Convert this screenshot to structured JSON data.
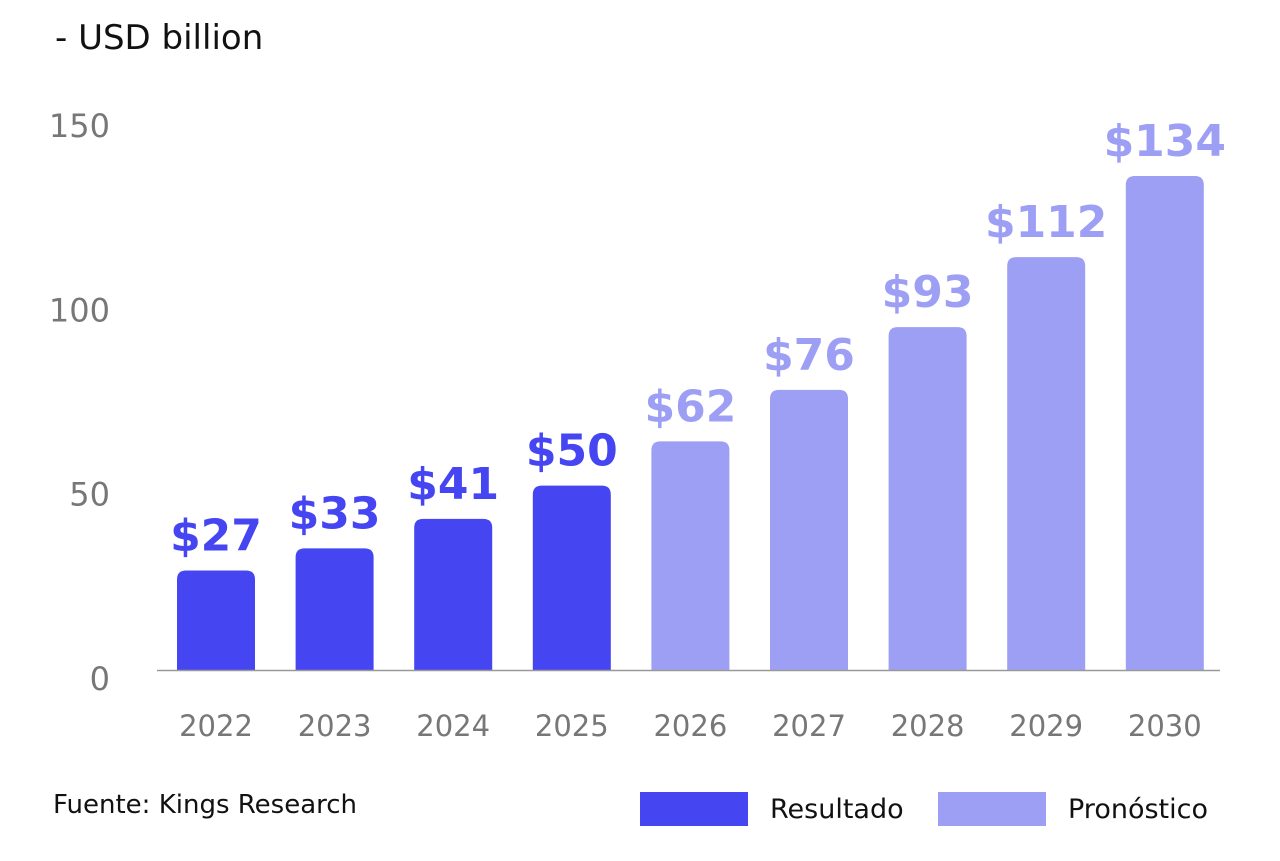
{
  "chart_data": {
    "type": "bar",
    "title": "",
    "unit_label": "-   USD billion",
    "xlabel": "",
    "ylabel": "USD billion",
    "ylim": [
      0,
      150
    ],
    "yticks": [
      0,
      50,
      100,
      150
    ],
    "categories": [
      "2022",
      "2023",
      "2024",
      "2025",
      "2026",
      "2027",
      "2028",
      "2029",
      "2030"
    ],
    "values": [
      27,
      33,
      41,
      50,
      62,
      76,
      93,
      112,
      134
    ],
    "data_labels": [
      "$27",
      "$33",
      "$41",
      "$50",
      "$62",
      "$76",
      "$93",
      "$112",
      "$134"
    ],
    "series_type": [
      "actual",
      "actual",
      "actual",
      "actual",
      "forecast",
      "forecast",
      "forecast",
      "forecast",
      "forecast"
    ],
    "grid": false,
    "legend": {
      "placement": "bottom-right",
      "items": [
        {
          "label": "Resultado",
          "color": "#4545F2",
          "key": "actual"
        },
        {
          "label": "Pronóstico",
          "color": "#9D9FF5",
          "key": "forecast"
        }
      ]
    },
    "source": "Fuente: Kings Research",
    "colors": {
      "actual": "#4545F2",
      "forecast": "#9D9FF5",
      "axis": "#999999",
      "tick_text": "#777777"
    }
  }
}
